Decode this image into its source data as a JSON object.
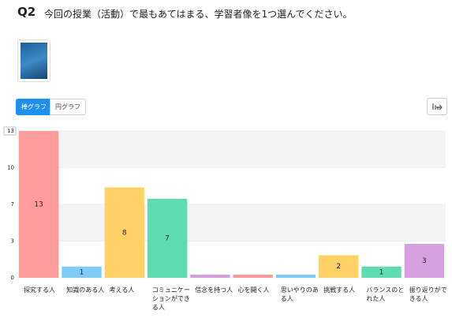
{
  "question": {
    "number": "Q2",
    "text": "今回の授業（活動）で最もあてはまる、学習者像を1つ選んでください。"
  },
  "buttons": [
    "棒グラフ",
    "円グラフ"
  ],
  "chart_data": {
    "type": "bar",
    "categories": [
      "探究する人",
      "知識のある人",
      "考える人",
      "コミュニケーションができる人",
      "信念を持つ人",
      "心を開く人",
      "思いやりのある人",
      "挑戦する人",
      "バランスのとれた人",
      "振り返りができる人"
    ],
    "values": [
      13,
      1,
      8,
      7,
      0,
      0,
      0,
      2,
      1,
      3
    ],
    "colors": [
      "#ff9b9b",
      "#7ecbf5",
      "#ffd166",
      "#5fdbb2",
      "#d7a0e0",
      "#ff9b9b",
      "#7ecbf5",
      "#ffd166",
      "#5fdbb2",
      "#d7a0e0"
    ],
    "ylim": [
      0,
      13
    ],
    "yticks": [
      0,
      {
        "value": 3.25,
        "label": "3"
      },
      {
        "value": 6.5,
        "label": "7"
      },
      {
        "value": 9.75,
        "label": "10"
      },
      13
    ],
    "grid": true
  }
}
